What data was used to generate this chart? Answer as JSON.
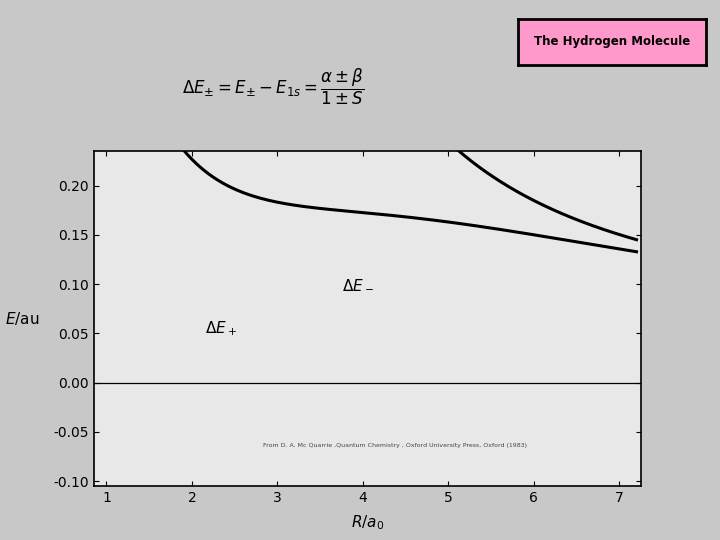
{
  "title_box_text": "The Hydrogen Molecule",
  "title_box_color": "#ff99cc",
  "title_box_edge": "#000000",
  "formula_text": "$\\Delta E_{\\pm} = E_{\\pm} - E_{1s} = \\dfrac{\\alpha \\pm \\beta}{1 \\pm S}$",
  "xlabel": "$R/a_0$",
  "ylabel": "$E$/au",
  "xlim": [
    0.85,
    7.25
  ],
  "ylim": [
    -0.105,
    0.235
  ],
  "xticks": [
    1,
    2,
    3,
    4,
    5,
    6,
    7
  ],
  "yticks": [
    -0.1,
    -0.05,
    0.0,
    0.05,
    0.1,
    0.15,
    0.2
  ],
  "citation": "From D. A. Mc Quarrie ,Quantum Chemistry , Oxford University Press, Oxford (1983)",
  "label_plus": "$\\Delta E_+$",
  "label_minus": "$\\Delta E_-$",
  "bg_color": "#f0f0f0",
  "line_color": "#000000",
  "line_width": 2.2
}
